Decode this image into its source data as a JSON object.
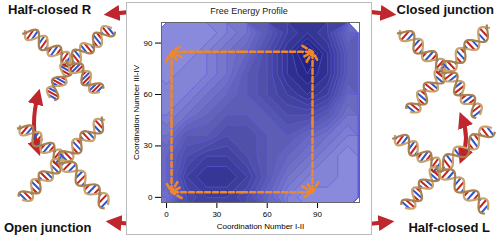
{
  "states": {
    "top_left": "Half-closed R",
    "top_right": "Closed junction",
    "bottom_left": "Open junction",
    "bottom_right": "Half-closed L"
  },
  "chart_data": {
    "type": "contour",
    "title": "Free Energy Profile",
    "x_label": "Coordination Number I-II",
    "y_label": "Coordination Number III-IV",
    "xlim": [
      -3,
      115
    ],
    "ylim": [
      -3,
      102
    ],
    "xticks": [
      0,
      30,
      60,
      90
    ],
    "yticks": [
      0,
      30,
      60,
      90
    ],
    "free_energy": {
      "x": [
        0,
        12,
        24,
        36,
        48,
        60,
        72,
        84,
        96,
        108
      ],
      "y": [
        0,
        12,
        24,
        36,
        48,
        60,
        72,
        84,
        96
      ],
      "values": [
        [
          7,
          4,
          3,
          3,
          4,
          6,
          8,
          9,
          9,
          9
        ],
        [
          6,
          3,
          2,
          2,
          3,
          5,
          7,
          8,
          8,
          9
        ],
        [
          6,
          4,
          3,
          3,
          4,
          5,
          6,
          7,
          8,
          9
        ],
        [
          7,
          5,
          5,
          4,
          4,
          5,
          5,
          6,
          7,
          8
        ],
        [
          8,
          7,
          6,
          5,
          5,
          5,
          4,
          4,
          5,
          7
        ],
        [
          8,
          8,
          7,
          6,
          5,
          4,
          3,
          2,
          3,
          6
        ],
        [
          9,
          8,
          8,
          7,
          5,
          4,
          2,
          1,
          2,
          5
        ],
        [
          9,
          9,
          8,
          7,
          6,
          4,
          2,
          0,
          2,
          5
        ],
        [
          9,
          9,
          9,
          8,
          7,
          5,
          3,
          2,
          3,
          6
        ]
      ]
    },
    "path": {
      "x": [
        3,
        87,
        87,
        3
      ],
      "y": [
        3,
        3,
        85,
        85
      ],
      "color": "#f0882a",
      "line_style": "dashed"
    }
  }
}
